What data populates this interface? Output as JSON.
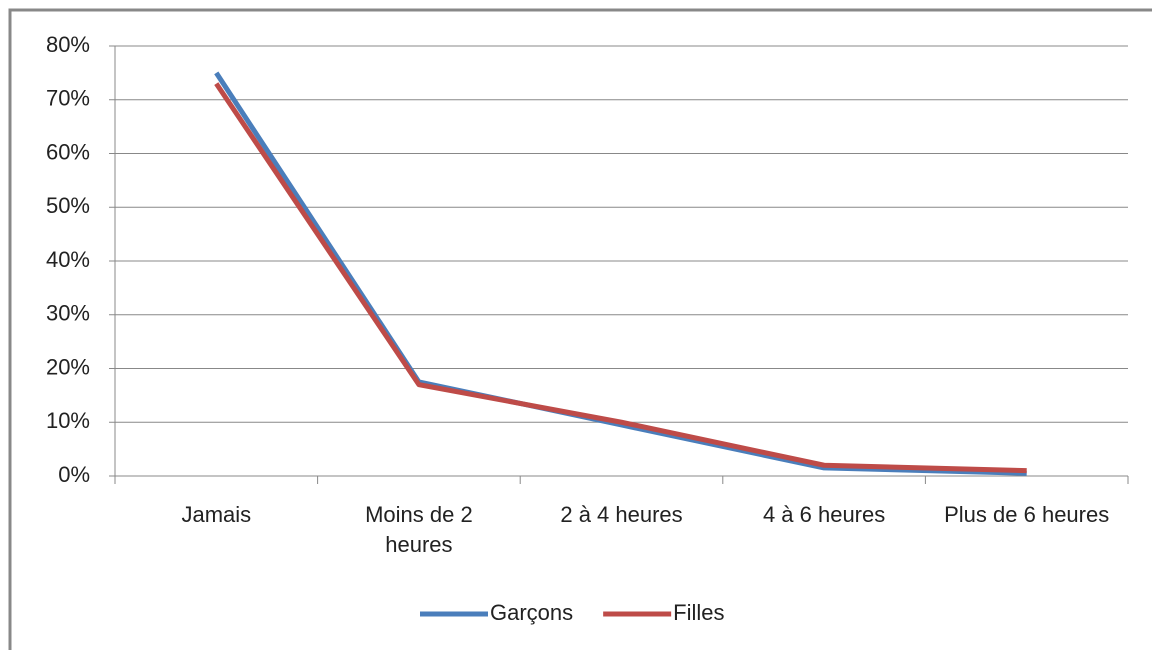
{
  "chart_data": {
    "type": "line",
    "categories": [
      "Jamais",
      "Moins de 2 heures",
      "2 à 4 heures",
      "4 à 6 heures",
      "Plus de 6 heures"
    ],
    "series": [
      {
        "name": "Garçons",
        "color": "#4a7ebb",
        "values": [
          75,
          17.5,
          9.5,
          1.5,
          0.5
        ]
      },
      {
        "name": "Filles",
        "color": "#be4b48",
        "values": [
          73,
          17,
          10,
          2,
          1
        ]
      }
    ],
    "ylim": [
      0,
      80
    ],
    "yticks": [
      {
        "value": 0,
        "label": "0%"
      },
      {
        "value": 10,
        "label": "10%"
      },
      {
        "value": 20,
        "label": "20%"
      },
      {
        "value": 30,
        "label": "30%"
      },
      {
        "value": 40,
        "label": "40%"
      },
      {
        "value": 50,
        "label": "50%"
      },
      {
        "value": 60,
        "label": "60%"
      },
      {
        "value": 70,
        "label": "70%"
      },
      {
        "value": 80,
        "label": "80%"
      }
    ],
    "grid": true,
    "legend": "bottom"
  }
}
